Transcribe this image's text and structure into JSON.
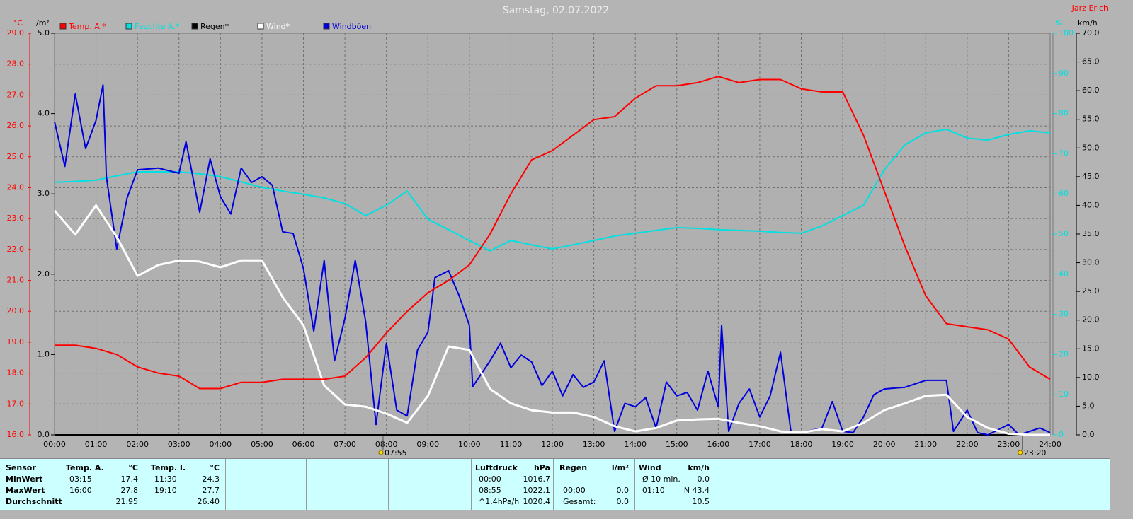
{
  "chart_data": {
    "type": "line",
    "title": "Samstag, 02.07.2022",
    "author": "Jarz Erich",
    "ylabel": "°C",
    "y2label": "l/m²",
    "y3label": "%",
    "y4label": "km/h",
    "xlim": [
      0,
      24
    ],
    "xticks": [
      {
        "value": 0,
        "label": "00:00"
      },
      {
        "value": 1,
        "label": "01:00"
      },
      {
        "value": 2,
        "label": "02:00"
      },
      {
        "value": 3,
        "label": "03:00"
      },
      {
        "value": 4,
        "label": "04:00"
      },
      {
        "value": 5,
        "label": "05:00"
      },
      {
        "value": 6,
        "label": "06:00"
      },
      {
        "value": 7,
        "label": "07:00"
      },
      {
        "value": 8,
        "label": "08:00"
      },
      {
        "value": 9,
        "label": "09:00"
      },
      {
        "value": 10,
        "label": "10:00"
      },
      {
        "value": 11,
        "label": "11:00"
      },
      {
        "value": 12,
        "label": "12:00"
      },
      {
        "value": 13,
        "label": "13:00"
      },
      {
        "value": 14,
        "label": "14:00"
      },
      {
        "value": 15,
        "label": "15:00"
      },
      {
        "value": 16,
        "label": "16:00"
      },
      {
        "value": 17,
        "label": "17:00"
      },
      {
        "value": 18,
        "label": "18:00"
      },
      {
        "value": 19,
        "label": "19:00"
      },
      {
        "value": 20,
        "label": "20:00"
      },
      {
        "value": 21,
        "label": "21:00"
      },
      {
        "value": 22,
        "label": "22:00"
      },
      {
        "value": 23,
        "label": "23:00"
      },
      {
        "value": 24,
        "label": "24:00"
      }
    ],
    "ylim": [
      16,
      29
    ],
    "yticks": [
      {
        "value": 16,
        "label": "16.0"
      },
      {
        "value": 17,
        "label": "17.0"
      },
      {
        "value": 18,
        "label": "18.0"
      },
      {
        "value": 19,
        "label": "19.0"
      },
      {
        "value": 20,
        "label": "20.0"
      },
      {
        "value": 21,
        "label": "21.0"
      },
      {
        "value": 22,
        "label": "22.0"
      },
      {
        "value": 23,
        "label": "23.0"
      },
      {
        "value": 24,
        "label": "24.0"
      },
      {
        "value": 25,
        "label": "25.0"
      },
      {
        "value": 26,
        "label": "26.0"
      },
      {
        "value": 27,
        "label": "27.0"
      },
      {
        "value": 28,
        "label": "28.0"
      },
      {
        "value": 29,
        "label": "29.0"
      }
    ],
    "y2lim": [
      0,
      5
    ],
    "y2ticks": [
      {
        "value": 0,
        "label": "0.0"
      },
      {
        "value": 1,
        "label": "1.0"
      },
      {
        "value": 2,
        "label": "2.0"
      },
      {
        "value": 3,
        "label": "3.0"
      },
      {
        "value": 4,
        "label": "4.0"
      },
      {
        "value": 5,
        "label": "5.0"
      }
    ],
    "y3lim": [
      0,
      100
    ],
    "y3ticks": [
      0,
      10,
      20,
      30,
      40,
      50,
      60,
      70,
      80,
      90,
      100
    ],
    "y4lim": [
      0,
      70
    ],
    "y4ticks": [
      {
        "value": 0,
        "label": "0.0"
      },
      {
        "value": 5,
        "label": "5.0"
      },
      {
        "value": 10,
        "label": "10.0"
      },
      {
        "value": 15,
        "label": "15.0"
      },
      {
        "value": 20,
        "label": "20.0"
      },
      {
        "value": 25,
        "label": "25.0"
      },
      {
        "value": 30,
        "label": "30.0"
      },
      {
        "value": 35,
        "label": "35.0"
      },
      {
        "value": 40,
        "label": "40.0"
      },
      {
        "value": 45,
        "label": "45.0"
      },
      {
        "value": 50,
        "label": "50.0"
      },
      {
        "value": 55,
        "label": "55.0"
      },
      {
        "value": 60,
        "label": "60.0"
      },
      {
        "value": 65,
        "label": "65.0"
      },
      {
        "value": 70,
        "label": "70.0"
      }
    ],
    "grid": true,
    "annotations": [
      {
        "x": 7.92,
        "label": "07:55"
      },
      {
        "x": 23.33,
        "label": "23:20"
      }
    ],
    "series": [
      {
        "name": "Temp. A.*",
        "color": "#ff0000",
        "axis": "y",
        "x": [
          0,
          0.5,
          1,
          1.5,
          2,
          2.5,
          3,
          3.5,
          4,
          4.5,
          5,
          5.5,
          6,
          6.5,
          7,
          7.5,
          8,
          8.5,
          9,
          9.5,
          10,
          10.5,
          11,
          11.5,
          12,
          12.5,
          13,
          13.5,
          14,
          14.5,
          15,
          15.5,
          16,
          16.5,
          17,
          17.5,
          18,
          18.5,
          19,
          19.5,
          20,
          20.5,
          21,
          21.5,
          22,
          22.5,
          23,
          23.5,
          24
        ],
        "values": [
          18.9,
          18.9,
          18.8,
          18.6,
          18.2,
          18.0,
          17.9,
          17.5,
          17.5,
          17.7,
          17.7,
          17.8,
          17.8,
          17.8,
          17.9,
          18.5,
          19.3,
          20.0,
          20.6,
          21.0,
          21.5,
          22.5,
          23.8,
          24.9,
          25.2,
          25.7,
          26.2,
          26.3,
          26.9,
          27.3,
          27.3,
          27.4,
          27.6,
          27.4,
          27.5,
          27.5,
          27.2,
          27.1,
          27.1,
          25.7,
          23.9,
          22.1,
          20.5,
          19.6,
          19.5,
          19.4,
          19.1,
          18.2,
          17.8
        ]
      },
      {
        "name": "Feuchte A.*",
        "color": "#00e0e0",
        "axis": "y3",
        "x": [
          0,
          0.5,
          1,
          1.5,
          2,
          2.5,
          3,
          3.5,
          4,
          4.5,
          5,
          5.5,
          6,
          6.5,
          7,
          7.5,
          8,
          8.5,
          9,
          9.5,
          10,
          10.5,
          11,
          11.5,
          12,
          12.5,
          13,
          13.5,
          14,
          14.5,
          15,
          15.5,
          16,
          16.5,
          17,
          17.5,
          18,
          18.5,
          19,
          19.5,
          20,
          20.5,
          21,
          21.5,
          22,
          22.5,
          23,
          23.5,
          24
        ],
        "values": [
          62.9,
          63.1,
          63.4,
          64.5,
          65.5,
          65.5,
          65.5,
          65,
          64.3,
          63,
          61.6,
          60.7,
          59.9,
          59,
          57.6,
          54.6,
          57.2,
          60.7,
          53.7,
          51.1,
          48.4,
          45.8,
          48.4,
          47.3,
          46.3,
          47.3,
          48.4,
          49.5,
          50.2,
          50.9,
          51.6,
          51.4,
          51.1,
          50.9,
          50.7,
          50.4,
          50.2,
          52,
          54.6,
          57.2,
          66.0,
          72.2,
          75.2,
          76.1,
          73.9,
          73.4,
          74.8,
          75.7,
          75.2
        ]
      },
      {
        "name": "Regen*",
        "color": "#000000",
        "axis": "y2",
        "x": [
          0,
          24
        ],
        "values": [
          0,
          0
        ]
      },
      {
        "name": "Wind*",
        "color": "#ffffff",
        "axis": "y4",
        "x": [
          0,
          0.5,
          1,
          1.5,
          2,
          2.5,
          3,
          3.5,
          4,
          4.5,
          5,
          5.5,
          6,
          6.5,
          7,
          7.5,
          8,
          8.5,
          9,
          9.5,
          10,
          10.5,
          11,
          11.5,
          12,
          12.5,
          13,
          13.5,
          14,
          14.5,
          15,
          15.5,
          16,
          16.5,
          17,
          17.5,
          18,
          18.5,
          19,
          19.5,
          20,
          20.5,
          21,
          21.5,
          22,
          22.5,
          23,
          23.5,
          24
        ],
        "values": [
          39.1,
          34.9,
          40.0,
          34.5,
          27.7,
          29.6,
          30.4,
          30.2,
          29.2,
          30.4,
          30.4,
          24.0,
          19.1,
          8.6,
          5.3,
          4.9,
          3.7,
          2.1,
          6.8,
          15.4,
          14.8,
          8.0,
          5.5,
          4.3,
          3.9,
          3.9,
          3.1,
          1.5,
          0.6,
          1.2,
          2.5,
          2.7,
          2.8,
          2.1,
          1.5,
          0.6,
          0.4,
          1.0,
          0.6,
          2.1,
          4.3,
          5.5,
          6.8,
          7.0,
          3.1,
          1.2,
          0.2,
          0,
          0
        ]
      },
      {
        "name": "Windböen",
        "color": "#0000dd",
        "axis": "y4",
        "x": [
          0,
          0.25,
          0.5,
          0.75,
          1,
          1.17,
          1.25,
          1.5,
          1.75,
          2,
          2.5,
          3,
          3.17,
          3.5,
          3.75,
          4,
          4.25,
          4.5,
          4.75,
          5,
          5.25,
          5.5,
          5.75,
          6,
          6.25,
          6.5,
          6.75,
          7,
          7.25,
          7.5,
          7.75,
          8,
          8.25,
          8.5,
          8.75,
          9,
          9.17,
          9.5,
          9.75,
          10,
          10.08,
          10.5,
          10.75,
          11,
          11.25,
          11.5,
          11.75,
          12,
          12.25,
          12.5,
          12.75,
          13,
          13.25,
          13.5,
          13.75,
          14,
          14.25,
          14.5,
          14.75,
          15,
          15.25,
          15.5,
          15.75,
          16,
          16.08,
          16.25,
          16.5,
          16.75,
          17,
          17.25,
          17.5,
          17.75,
          18,
          18.5,
          18.75,
          19,
          19.25,
          19.5,
          19.75,
          20,
          20.5,
          21,
          21.5,
          21.67,
          22,
          22.25,
          22.5,
          23,
          23.25,
          23.75,
          24
        ],
        "values": [
          54.6,
          46.8,
          59.4,
          49.9,
          54.8,
          61.0,
          45.0,
          32.4,
          41.3,
          46.2,
          46.5,
          45.6,
          51.1,
          38.8,
          48.1,
          41.5,
          38.5,
          46.5,
          44.0,
          45.0,
          43.5,
          35.4,
          35.1,
          29.0,
          18.1,
          30.4,
          12.9,
          20.3,
          30.4,
          19.7,
          1.8,
          16.0,
          4.3,
          3.3,
          14.8,
          17.9,
          27.4,
          28.6,
          24.3,
          19.1,
          8.4,
          12.9,
          16.0,
          11.7,
          13.9,
          12.7,
          8.6,
          11.1,
          6.8,
          10.5,
          8.3,
          9.2,
          12.9,
          0.6,
          5.5,
          4.9,
          6.5,
          1.2,
          9.2,
          6.8,
          7.4,
          4.3,
          11.1,
          4.9,
          19.1,
          0.6,
          5.5,
          8.0,
          3.1,
          6.8,
          14.4,
          0.6,
          0.4,
          1.2,
          5.8,
          0.6,
          0.4,
          3.1,
          7.0,
          8.0,
          8.3,
          9.5,
          9.5,
          0.6,
          4.3,
          0.4,
          0,
          1.8,
          0,
          1.2,
          0.4
        ]
      }
    ]
  },
  "stats": {
    "label_header": "Sensor",
    "row_labels": [
      "MinWert",
      "MaxWert",
      "Durchschnitt"
    ],
    "groups": [
      {
        "name": "Temp. A.",
        "unit": "°C",
        "rows": [
          [
            "03:15",
            "17.4"
          ],
          [
            "16:00",
            "27.8"
          ],
          [
            null,
            "21.95"
          ]
        ]
      },
      {
        "name": "Temp. I.",
        "unit": "°C",
        "rows": [
          [
            "11:30",
            "24.3"
          ],
          [
            "19:10",
            "27.7"
          ],
          [
            null,
            "26.40"
          ]
        ]
      },
      {
        "name": "Luftdruck",
        "unit": "hPa",
        "rows": [
          [
            "00:00",
            "1016.7"
          ],
          [
            "08:55",
            "1022.1"
          ],
          [
            "^1.4hPa/h",
            "1020.4"
          ]
        ]
      },
      {
        "name": "Regen",
        "unit": "l/m²",
        "rows": [
          [
            null,
            null
          ],
          [
            "00:00",
            "0.0"
          ],
          [
            "Gesamt:",
            "0.0"
          ]
        ]
      },
      {
        "name": "Wind",
        "unit": "km/h",
        "rows": [
          [
            "Ø 10 min.",
            "0.0"
          ],
          [
            "01:10",
            "N 43.4"
          ],
          [
            null,
            "10.5"
          ]
        ]
      }
    ]
  }
}
